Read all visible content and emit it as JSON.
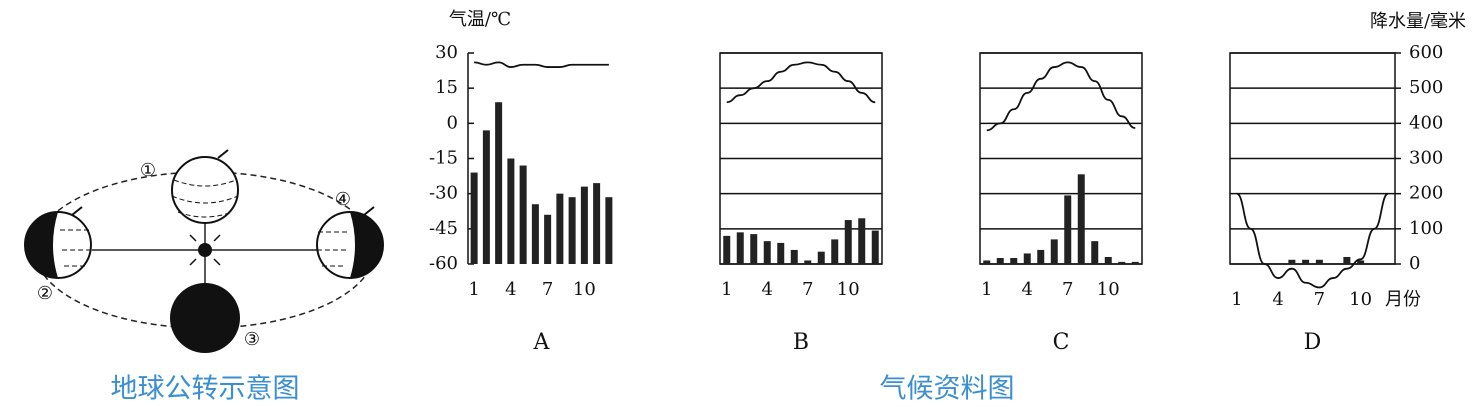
{
  "orbit_diagram": {
    "title": "地球公转示意图",
    "positions": [
      "①",
      "②",
      "③",
      "④"
    ]
  },
  "chart_data": {
    "type": "climate",
    "title": "气候资料图",
    "categories": [
      "1",
      null,
      null,
      "4",
      null,
      null,
      "7",
      null,
      null,
      "10",
      null,
      null
    ],
    "x_label": "月份",
    "temperature_axis": {
      "label": "气温/℃",
      "ylim": [
        -60,
        30
      ],
      "yticks": [
        30,
        15,
        0,
        -15,
        -30,
        -45,
        -60
      ]
    },
    "precipitation_axis": {
      "label": "降水量/毫米",
      "y2lim": [
        0,
        600
      ],
      "y2ticks": [
        600,
        500,
        400,
        300,
        200,
        100,
        0
      ]
    },
    "line_color": "#111111",
    "bar_color": "#222222",
    "panels": [
      {
        "label": "A",
        "grid": false,
        "temperature": [
          26,
          25,
          26,
          24,
          25,
          25,
          24,
          24,
          25,
          25,
          25,
          25
        ],
        "precipitation": [
          260,
          380,
          460,
          300,
          280,
          170,
          140,
          200,
          190,
          220,
          230,
          190
        ]
      },
      {
        "label": "B",
        "grid": true,
        "temperature": [
          9,
          12,
          15,
          18,
          22,
          25,
          26,
          25,
          22,
          18,
          13,
          9
        ],
        "precipitation": [
          80,
          90,
          85,
          65,
          60,
          40,
          10,
          35,
          70,
          125,
          130,
          95
        ]
      },
      {
        "label": "C",
        "grid": true,
        "temperature": [
          -3,
          0,
          6,
          13,
          19,
          24,
          26,
          24,
          18,
          10,
          3,
          -2
        ],
        "precipitation": [
          10,
          17,
          17,
          30,
          40,
          70,
          195,
          255,
          65,
          20,
          6,
          6
        ]
      },
      {
        "label": "D",
        "grid": true,
        "temperature": [
          -30,
          -45,
          -60,
          -66,
          -62,
          -68,
          -70,
          -66,
          -62,
          -58,
          -45,
          -30
        ],
        "precipitation": [
          0,
          0,
          0,
          0,
          12,
          12,
          12,
          0,
          20,
          10,
          0,
          0
        ]
      }
    ]
  }
}
